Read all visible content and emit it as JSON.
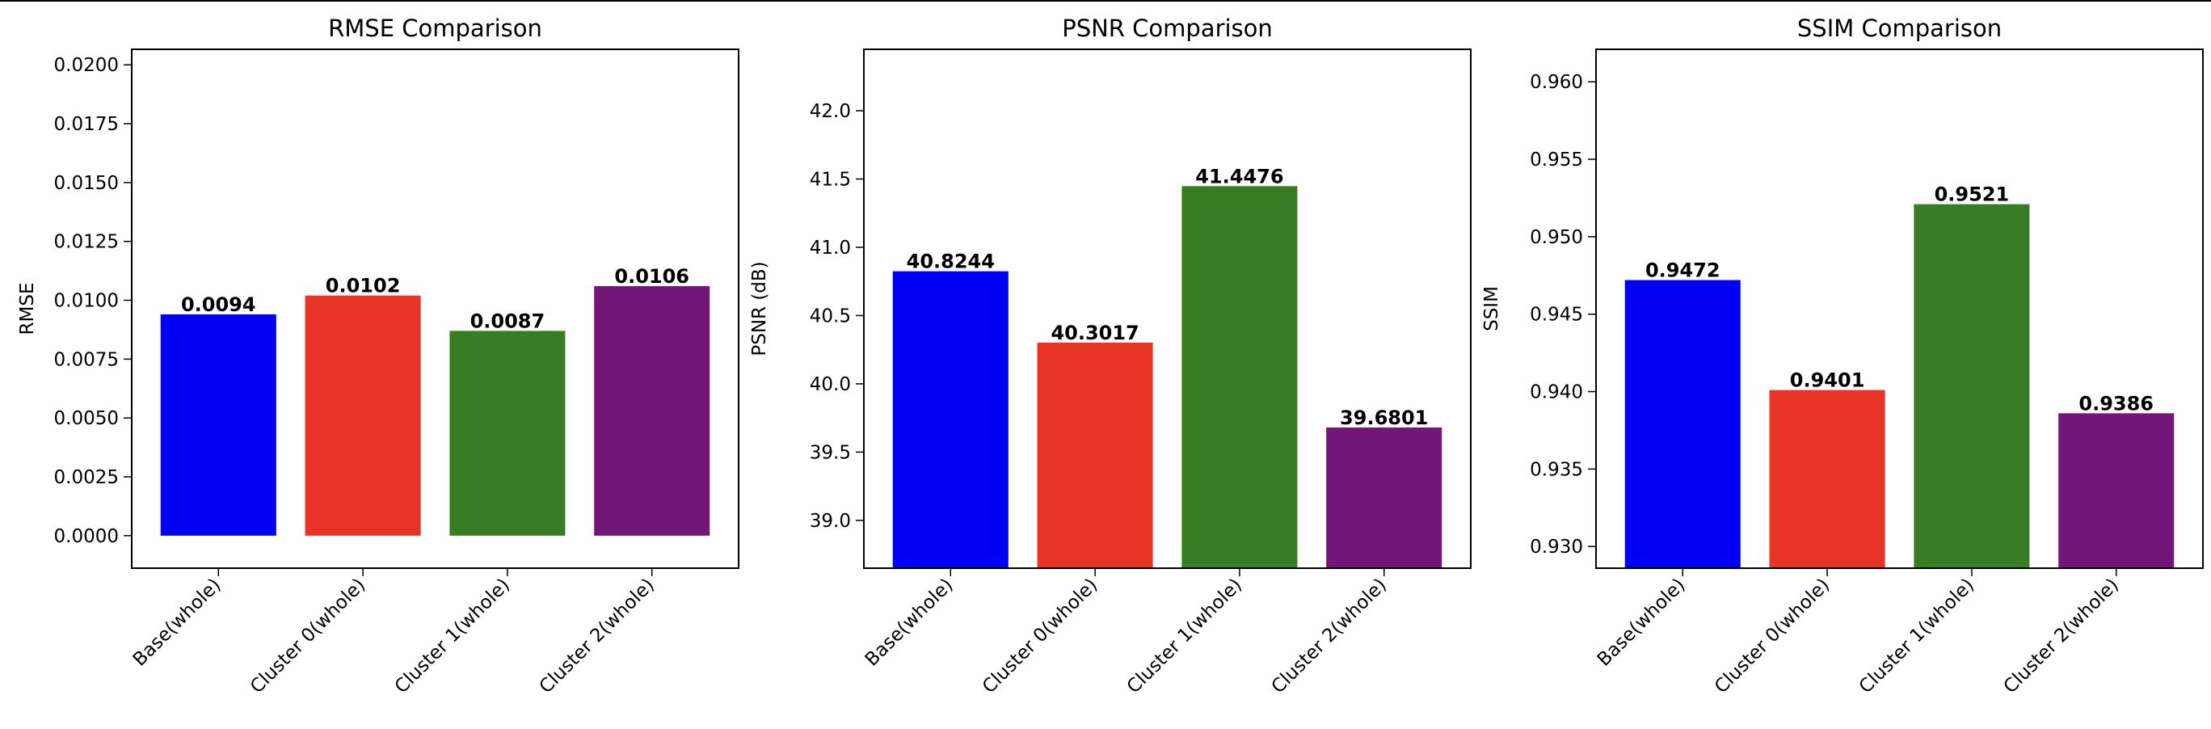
{
  "figure": {
    "frame_color": "#000000"
  },
  "chart_data": [
    {
      "type": "bar",
      "title": "RMSE Comparison",
      "xlabel": "",
      "ylabel": "RMSE",
      "categories": [
        "Base(whole)",
        "Cluster 0(whole)",
        "Cluster 1(whole)",
        "Cluster 2(whole)"
      ],
      "values": [
        0.0094,
        0.0102,
        0.0087,
        0.0106
      ],
      "value_labels": [
        "0.0094",
        "0.0102",
        "0.0087",
        "0.0106"
      ],
      "colors": [
        "#0000f5",
        "#e83425",
        "#387d23",
        "#741677"
      ],
      "ylim": [
        -0.00138,
        0.02066
      ],
      "yticks": [
        0.0,
        0.0025,
        0.005,
        0.0075,
        0.01,
        0.0125,
        0.015,
        0.0175,
        0.02
      ],
      "ytick_labels": [
        "0.0000",
        "0.0025",
        "0.0050",
        "0.0075",
        "0.0100",
        "0.0125",
        "0.0150",
        "0.0175",
        "0.0200"
      ],
      "grid": false,
      "legend": "none"
    },
    {
      "type": "bar",
      "title": "PSNR Comparison",
      "xlabel": "",
      "ylabel": "PSNR (dB)",
      "categories": [
        "Base(whole)",
        "Cluster 0(whole)",
        "Cluster 1(whole)",
        "Cluster 2(whole)"
      ],
      "values": [
        40.8244,
        40.3017,
        41.4476,
        39.6801
      ],
      "value_labels": [
        "40.8244",
        "40.3017",
        "41.4476",
        "39.6801"
      ],
      "colors": [
        "#0000f5",
        "#e83425",
        "#387d23",
        "#741677"
      ],
      "ylim": [
        38.65,
        42.45
      ],
      "yticks": [
        39.0,
        39.5,
        40.0,
        40.5,
        41.0,
        41.5,
        42.0
      ],
      "ytick_labels": [
        "39.0",
        "39.5",
        "40.0",
        "40.5",
        "41.0",
        "41.5",
        "42.0"
      ],
      "grid": false,
      "legend": "none"
    },
    {
      "type": "bar",
      "title": "SSIM Comparison",
      "xlabel": "",
      "ylabel": "SSIM",
      "categories": [
        "Base(whole)",
        "Cluster 0(whole)",
        "Cluster 1(whole)",
        "Cluster 2(whole)"
      ],
      "values": [
        0.9472,
        0.9401,
        0.9521,
        0.9386
      ],
      "value_labels": [
        "0.9472",
        "0.9401",
        "0.9521",
        "0.9386"
      ],
      "colors": [
        "#0000f5",
        "#e83425",
        "#387d23",
        "#741677"
      ],
      "ylim": [
        0.9286,
        0.9621
      ],
      "yticks": [
        0.93,
        0.935,
        0.94,
        0.945,
        0.95,
        0.955,
        0.96
      ],
      "ytick_labels": [
        "0.930",
        "0.935",
        "0.940",
        "0.945",
        "0.950",
        "0.955",
        "0.960"
      ],
      "grid": false,
      "legend": "none"
    }
  ]
}
